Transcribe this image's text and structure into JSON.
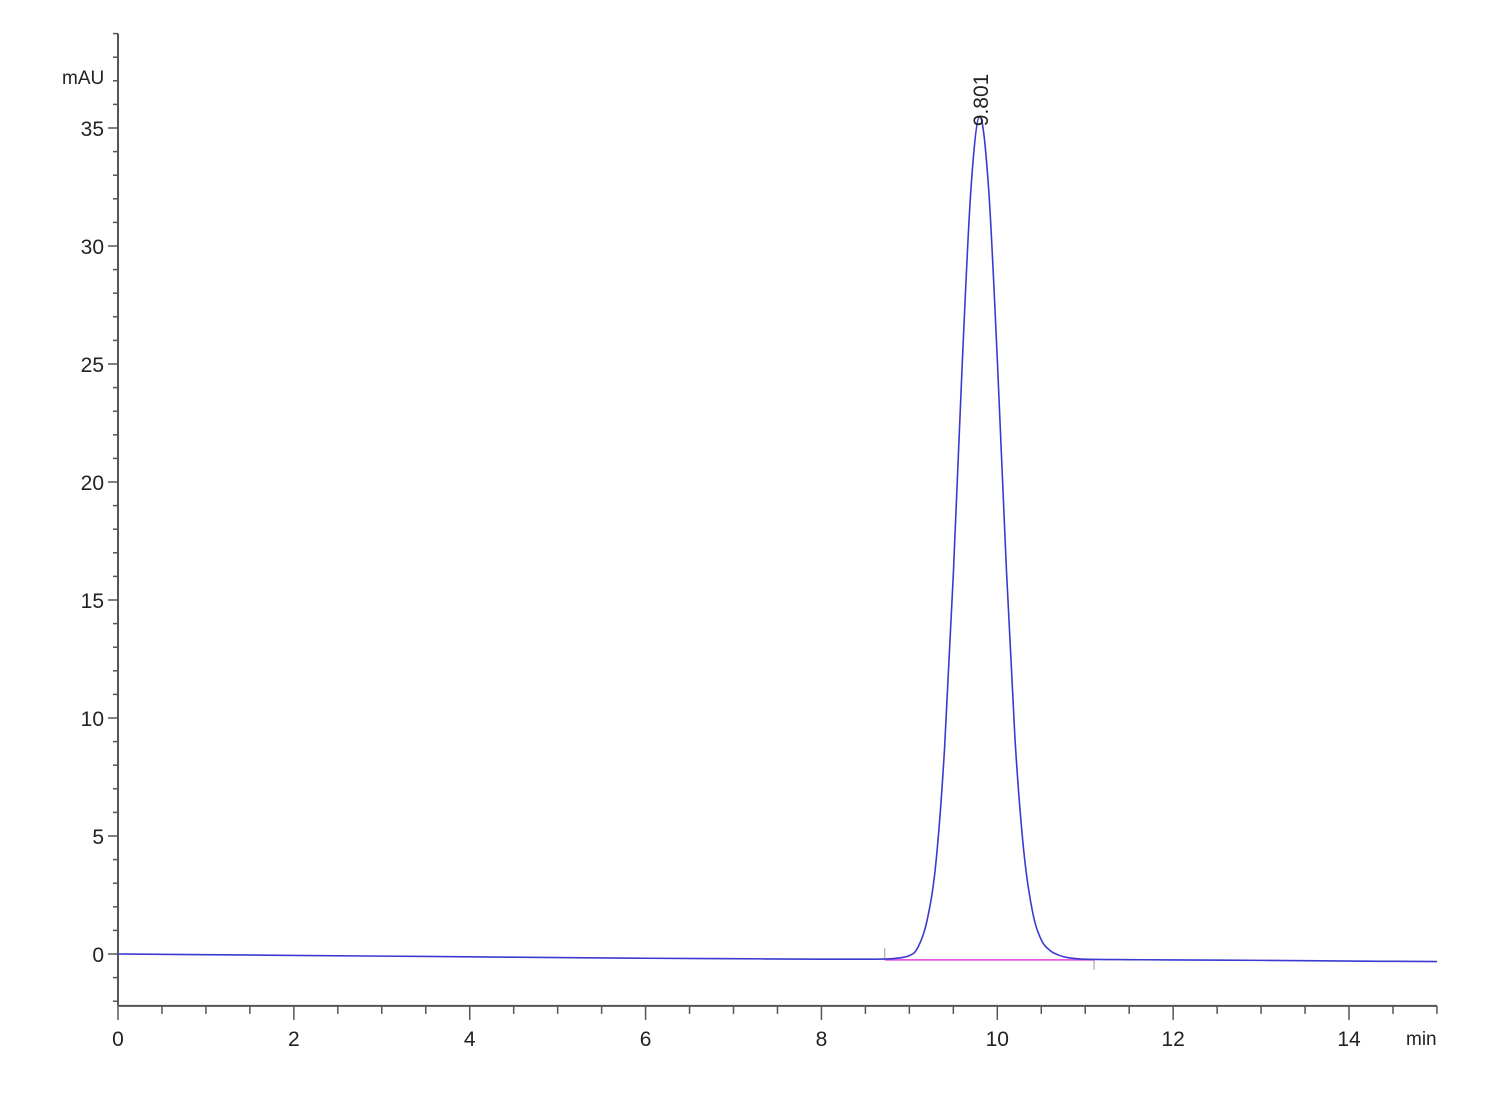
{
  "chart_data": {
    "type": "line",
    "title": "",
    "xlabel": "min",
    "ylabel": "mAU",
    "xlim": [
      0,
      15
    ],
    "ylim": [
      -2.2,
      39
    ],
    "x_ticks": [
      0,
      2,
      4,
      6,
      8,
      10,
      12,
      14
    ],
    "x_minor_step": 0.5,
    "y_ticks": [
      0,
      5,
      10,
      15,
      20,
      25,
      30,
      35
    ],
    "y_minor_step": 1,
    "grid": false,
    "colors": {
      "trace": "#3a3ad0",
      "baseline": "#e040e0",
      "axis": "#555555"
    },
    "series": [
      {
        "x": [
          0,
          1,
          2,
          3,
          4,
          5,
          6,
          7,
          8,
          8.5,
          8.8,
          9.0,
          9.1,
          9.2,
          9.3,
          9.4,
          9.5,
          9.6,
          9.7,
          9.8,
          9.9,
          10.0,
          10.1,
          10.2,
          10.3,
          10.4,
          10.5,
          10.6,
          10.7,
          10.8,
          11.0,
          11.5,
          12,
          13,
          14,
          15
        ],
        "y": [
          0,
          -0.03,
          -0.06,
          -0.09,
          -0.12,
          -0.15,
          -0.18,
          -0.2,
          -0.22,
          -0.22,
          -0.2,
          -0.07,
          0.3,
          1.4,
          3.8,
          8.7,
          16.1,
          24.9,
          32.4,
          35.5,
          32.5,
          25.2,
          16.6,
          9.2,
          4.4,
          1.8,
          0.6,
          0.15,
          -0.05,
          -0.15,
          -0.22,
          -0.24,
          -0.25,
          -0.27,
          -0.3,
          -0.32
        ]
      }
    ],
    "peaks": [
      {
        "retention_time": 9.801,
        "label": "9.801",
        "height": 35.5
      }
    ],
    "integration_baseline": {
      "start": 8.72,
      "end": 11.1,
      "value": -0.25
    }
  }
}
